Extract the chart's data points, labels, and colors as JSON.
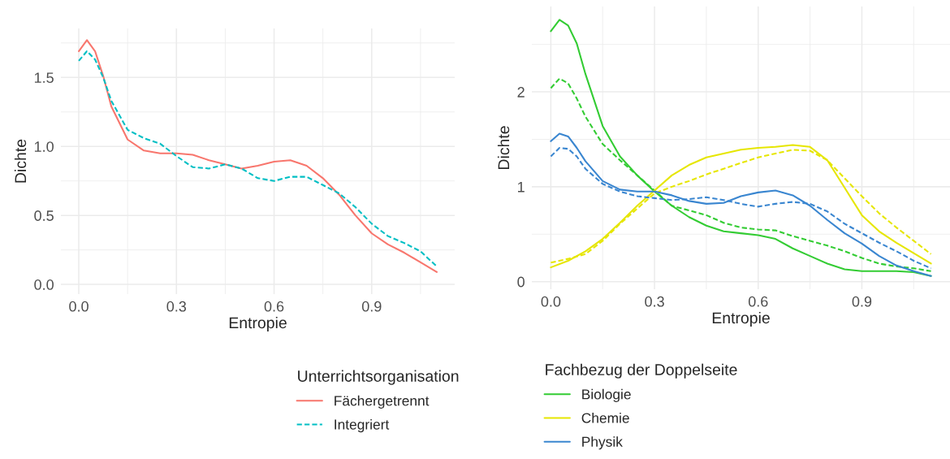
{
  "chart_data": [
    {
      "type": "line",
      "xlabel": "Entropie",
      "ylabel": "Dichte",
      "legend_title": "Unterrichtsorganisation",
      "legend": "bottom",
      "grid": true,
      "xlim": [
        -0.055,
        1.155
      ],
      "ylim": [
        -0.07,
        1.855
      ],
      "xticks": [
        {
          "value": 0,
          "label": "0.0"
        },
        {
          "value": 0.3,
          "label": "0.3"
        },
        {
          "value": 0.6,
          "label": "0.6"
        },
        {
          "value": 0.9,
          "label": "0.9"
        }
      ],
      "yticks": [
        {
          "value": 0,
          "label": "0.0"
        },
        {
          "value": 0.5,
          "label": "0.5"
        },
        {
          "value": 1,
          "label": "1.0"
        },
        {
          "value": 1.5,
          "label": "1.5"
        }
      ],
      "x": [
        0,
        0.025,
        0.05,
        0.075,
        0.1,
        0.15,
        0.2,
        0.25,
        0.3,
        0.35,
        0.4,
        0.45,
        0.5,
        0.55,
        0.6,
        0.65,
        0.7,
        0.75,
        0.8,
        0.85,
        0.9,
        0.95,
        1.0,
        1.05,
        1.1
      ],
      "series": [
        {
          "name": "Fächergetrennt",
          "color": "#f8766d",
          "line_style": "solid",
          "values": [
            1.69,
            1.77,
            1.69,
            1.51,
            1.29,
            1.05,
            0.97,
            0.95,
            0.95,
            0.94,
            0.9,
            0.87,
            0.84,
            0.86,
            0.89,
            0.9,
            0.86,
            0.77,
            0.65,
            0.5,
            0.37,
            0.29,
            0.23,
            0.16,
            0.09
          ]
        },
        {
          "name": "Integriert",
          "color": "#00bfc4",
          "line_style": "dashed",
          "values": [
            1.62,
            1.69,
            1.63,
            1.5,
            1.33,
            1.12,
            1.06,
            1.02,
            0.93,
            0.85,
            0.84,
            0.87,
            0.84,
            0.77,
            0.75,
            0.78,
            0.78,
            0.72,
            0.66,
            0.56,
            0.44,
            0.35,
            0.3,
            0.24,
            0.13
          ]
        }
      ]
    },
    {
      "type": "line",
      "xlabel": "Entropie",
      "ylabel": "Dichte",
      "legend_title": "Fachbezug der Doppelseite",
      "legend": "bottom",
      "grid": true,
      "xlim": [
        -0.055,
        1.155
      ],
      "ylim": [
        -0.08,
        2.9
      ],
      "xticks": [
        {
          "value": 0,
          "label": "0.0"
        },
        {
          "value": 0.3,
          "label": "0.3"
        },
        {
          "value": 0.6,
          "label": "0.6"
        },
        {
          "value": 0.9,
          "label": "0.9"
        }
      ],
      "yticks": [
        0,
        1,
        2
      ],
      "x": [
        0,
        0.025,
        0.05,
        0.075,
        0.1,
        0.15,
        0.2,
        0.25,
        0.3,
        0.35,
        0.4,
        0.45,
        0.5,
        0.55,
        0.6,
        0.65,
        0.7,
        0.75,
        0.8,
        0.85,
        0.9,
        0.95,
        1.0,
        1.05,
        1.1
      ],
      "series": [
        {
          "name": "Biologie",
          "color": "#33cc33",
          "line_style": "solid",
          "values": [
            2.64,
            2.76,
            2.7,
            2.51,
            2.19,
            1.64,
            1.32,
            1.12,
            0.95,
            0.8,
            0.68,
            0.59,
            0.53,
            0.51,
            0.49,
            0.45,
            0.35,
            0.27,
            0.19,
            0.13,
            0.11,
            0.11,
            0.11,
            0.1,
            0.06
          ]
        },
        {
          "color": "#33cc33",
          "line_style": "dashed",
          "values": [
            2.04,
            2.14,
            2.09,
            1.93,
            1.74,
            1.45,
            1.28,
            1.12,
            0.96,
            0.8,
            0.75,
            0.7,
            0.62,
            0.57,
            0.55,
            0.54,
            0.48,
            0.43,
            0.38,
            0.32,
            0.25,
            0.19,
            0.16,
            0.14,
            0.11
          ]
        },
        {
          "name": "Chemie",
          "color": "#e6e600",
          "line_style": "solid",
          "x": [
            0,
            0.05,
            0.1,
            0.15,
            0.2,
            0.25,
            0.3,
            0.35,
            0.4,
            0.45,
            0.5,
            0.55,
            0.6,
            0.65,
            0.7,
            0.75,
            0.8,
            0.85,
            0.9,
            0.95,
            1.0,
            1.05,
            1.1
          ],
          "values": [
            0.15,
            0.22,
            0.32,
            0.45,
            0.62,
            0.8,
            0.96,
            1.12,
            1.23,
            1.31,
            1.35,
            1.39,
            1.41,
            1.42,
            1.44,
            1.42,
            1.28,
            0.99,
            0.7,
            0.53,
            0.41,
            0.3,
            0.19
          ]
        },
        {
          "color": "#e6e600",
          "line_style": "dashed",
          "x": [
            0,
            0.05,
            0.1,
            0.15,
            0.2,
            0.25,
            0.3,
            0.35,
            0.4,
            0.45,
            0.5,
            0.55,
            0.6,
            0.65,
            0.7,
            0.75,
            0.8,
            0.85,
            0.9,
            0.95,
            1.0,
            1.05,
            1.1
          ],
          "values": [
            0.2,
            0.24,
            0.29,
            0.43,
            0.61,
            0.77,
            0.93,
            1.0,
            1.06,
            1.13,
            1.19,
            1.25,
            1.31,
            1.35,
            1.39,
            1.38,
            1.28,
            1.09,
            0.9,
            0.72,
            0.57,
            0.43,
            0.29
          ]
        },
        {
          "name": "Physik",
          "color": "#3a86d0",
          "line_style": "solid",
          "values": [
            1.48,
            1.56,
            1.53,
            1.41,
            1.27,
            1.06,
            0.97,
            0.95,
            0.95,
            0.91,
            0.85,
            0.82,
            0.83,
            0.9,
            0.94,
            0.96,
            0.91,
            0.8,
            0.65,
            0.51,
            0.4,
            0.27,
            0.17,
            0.11,
            0.06
          ]
        },
        {
          "color": "#3a86d0",
          "line_style": "dashed",
          "values": [
            1.32,
            1.41,
            1.4,
            1.32,
            1.19,
            1.03,
            0.95,
            0.9,
            0.88,
            0.86,
            0.87,
            0.89,
            0.86,
            0.82,
            0.79,
            0.82,
            0.84,
            0.82,
            0.74,
            0.61,
            0.51,
            0.41,
            0.32,
            0.22,
            0.14
          ]
        }
      ]
    }
  ]
}
